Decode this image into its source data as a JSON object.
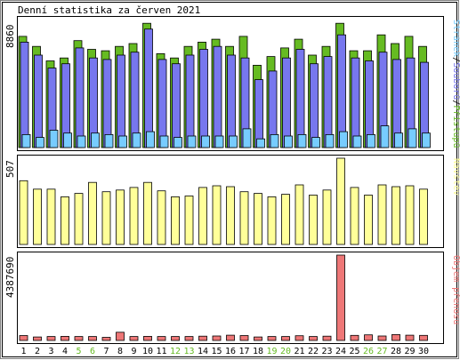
{
  "title": "Denní statistika za červen 2021",
  "colors": {
    "frame": "#000000",
    "border_gray": "#808080",
    "hits": "#66bb22",
    "files": "#7777ee",
    "pages": "#77ccff",
    "visits": "#ffff99",
    "volume": "#ee7777",
    "weekend_label": "#66bb22",
    "weekday_label": "#000000"
  },
  "chart_data": [
    {
      "type": "bar",
      "name": "hits-files-pages",
      "title": "Denní statistika za červen 2021",
      "categories": [
        "1",
        "2",
        "3",
        "4",
        "5",
        "6",
        "7",
        "8",
        "9",
        "10",
        "11",
        "12",
        "13",
        "14",
        "15",
        "16",
        "17",
        "18",
        "19",
        "20",
        "21",
        "22",
        "23",
        "24",
        "25",
        "26",
        "27",
        "28",
        "29",
        "30"
      ],
      "weekend_days": [
        "5",
        "6",
        "12",
        "13",
        "19",
        "20",
        "26",
        "27"
      ],
      "ymax_label": "8860",
      "ylim": [
        0,
        8860
      ],
      "legend_label": "Stránek/Souborů/Přístupů",
      "legend_colors": [
        "#77ccff",
        "#7777ee",
        "#66bb22"
      ],
      "series": [
        {
          "name": "Přístupů",
          "color": "#66bb22",
          "values": [
            7700,
            7000,
            6000,
            6200,
            7400,
            6800,
            6700,
            7000,
            7200,
            8600,
            6500,
            6200,
            7000,
            7300,
            7500,
            7000,
            7700,
            5700,
            6300,
            6900,
            7500,
            6400,
            7000,
            8600,
            6700,
            6700,
            7800,
            7200,
            7700,
            7000
          ]
        },
        {
          "name": "Souborů",
          "color": "#7777ee",
          "values": [
            7300,
            6400,
            5500,
            5800,
            6900,
            6200,
            6100,
            6400,
            6600,
            8200,
            6100,
            5800,
            6400,
            6800,
            7000,
            6400,
            6200,
            4700,
            5300,
            6200,
            6800,
            5800,
            6300,
            7800,
            6200,
            6000,
            6600,
            6100,
            6200,
            5900
          ]
        },
        {
          "name": "Stránek",
          "color": "#77ccff",
          "values": [
            900,
            700,
            1200,
            1000,
            800,
            1000,
            900,
            800,
            1000,
            1100,
            800,
            700,
            800,
            800,
            800,
            800,
            1300,
            600,
            900,
            800,
            900,
            700,
            900,
            1100,
            800,
            900,
            1500,
            1000,
            1300,
            1000
          ]
        }
      ]
    },
    {
      "type": "bar",
      "name": "visits",
      "categories": [
        "1",
        "2",
        "3",
        "4",
        "5",
        "6",
        "7",
        "8",
        "9",
        "10",
        "11",
        "12",
        "13",
        "14",
        "15",
        "16",
        "17",
        "18",
        "19",
        "20",
        "21",
        "22",
        "23",
        "24",
        "25",
        "26",
        "27",
        "28",
        "29",
        "30"
      ],
      "ymax_label": "507",
      "ylim": [
        0,
        507
      ],
      "legend_label": "Návštěv",
      "legend_colors": [
        "#ffff99"
      ],
      "series": [
        {
          "name": "Návštěv",
          "color": "#ffff99",
          "values": [
            375,
            325,
            325,
            280,
            300,
            365,
            310,
            320,
            335,
            365,
            315,
            280,
            285,
            335,
            345,
            340,
            310,
            300,
            280,
            295,
            350,
            290,
            320,
            507,
            335,
            290,
            350,
            340,
            345,
            325
          ]
        }
      ]
    },
    {
      "type": "bar",
      "name": "volume",
      "categories": [
        "1",
        "2",
        "3",
        "4",
        "5",
        "6",
        "7",
        "8",
        "9",
        "10",
        "11",
        "12",
        "13",
        "14",
        "15",
        "16",
        "17",
        "18",
        "19",
        "20",
        "21",
        "22",
        "23",
        "24",
        "25",
        "26",
        "27",
        "28",
        "29",
        "30"
      ],
      "ymax_label": "4387690",
      "ylim": [
        0,
        4387690
      ],
      "legend_label": "Objem přenosu",
      "legend_colors": [
        "#ee7777"
      ],
      "series": [
        {
          "name": "Objem přenosu",
          "color": "#ee7777",
          "values": [
            250000,
            180000,
            200000,
            210000,
            200000,
            200000,
            160000,
            420000,
            200000,
            210000,
            200000,
            200000,
            200000,
            220000,
            230000,
            270000,
            250000,
            180000,
            200000,
            200000,
            240000,
            200000,
            220000,
            4387690,
            260000,
            290000,
            230000,
            300000,
            270000,
            260000
          ]
        }
      ]
    }
  ]
}
